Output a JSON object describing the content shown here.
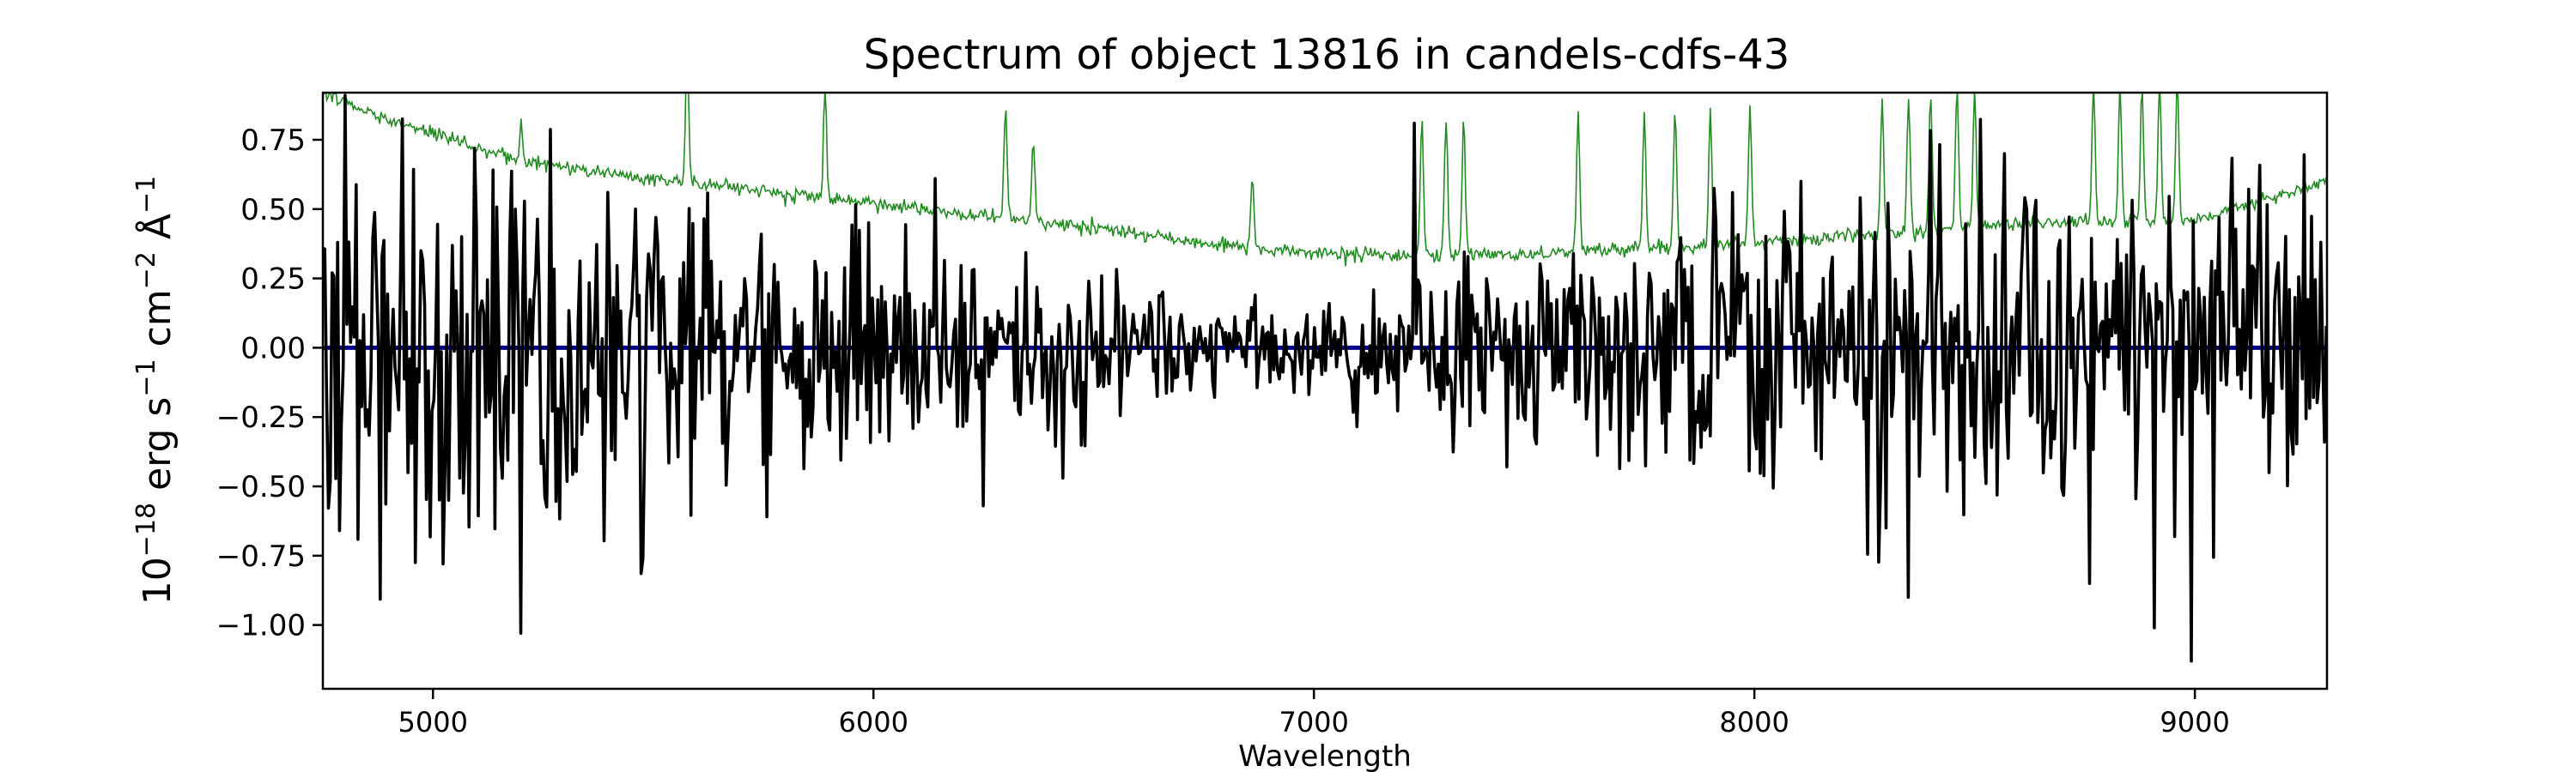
{
  "chart_data": {
    "type": "line",
    "title": "Spectrum of object 13816 in candels-cdfs-43",
    "xlabel": "Wavelength",
    "ylabel": {
      "base": "10",
      "exp": "−18",
      "unit1": " erg s",
      "exp2": "−1",
      "unit2": " cm",
      "exp3": "−2",
      "unit3": " Å",
      "exp4": "−1"
    },
    "xlim": [
      4750,
      9300
    ],
    "ylim": [
      -1.23,
      0.92
    ],
    "xticks": [
      5000,
      6000,
      7000,
      8000,
      9000
    ],
    "yticks": [
      0.75,
      0.5,
      0.25,
      0.0,
      -0.25,
      -0.5,
      -0.75,
      -1.0
    ],
    "ytick_labels": [
      "0.75",
      "0.50",
      "0.25",
      "0.00",
      "−0.25",
      "−0.50",
      "−0.75",
      "−1.00"
    ],
    "colors": {
      "flux": "#000000",
      "error": "#228b22",
      "zero": "#00008b"
    },
    "series": [
      {
        "role": "flux",
        "noise_amplitude_profile": [
          {
            "x": 4750,
            "a": 0.55
          },
          {
            "x": 5300,
            "a": 0.5
          },
          {
            "x": 6000,
            "a": 0.3
          },
          {
            "x": 6800,
            "a": 0.15
          },
          {
            "x": 7300,
            "a": 0.2
          },
          {
            "x": 8000,
            "a": 0.4
          },
          {
            "x": 8300,
            "a": 0.5
          },
          {
            "x": 9300,
            "a": 0.45
          }
        ],
        "notable_points": [
          {
            "x": 5095,
            "y": 0.72
          },
          {
            "x": 5200,
            "y": -1.03
          },
          {
            "x": 5025,
            "y": -0.78
          },
          {
            "x": 5760,
            "y": -0.61
          },
          {
            "x": 6140,
            "y": 0.61
          },
          {
            "x": 6250,
            "y": -0.57
          },
          {
            "x": 6430,
            "y": -0.47
          },
          {
            "x": 7230,
            "y": 0.81
          },
          {
            "x": 7950,
            "y": 0.56
          },
          {
            "x": 8300,
            "y": -0.65
          },
          {
            "x": 8350,
            "y": -0.9
          },
          {
            "x": 8620,
            "y": 0.5
          },
          {
            "x": 8760,
            "y": -0.85
          },
          {
            "x": 8910,
            "y": -1.01
          },
          {
            "x": 8990,
            "y": -1.13
          }
        ]
      },
      {
        "role": "error",
        "baseline": [
          {
            "x": 4750,
            "y": 0.92
          },
          {
            "x": 4900,
            "y": 0.82
          },
          {
            "x": 5200,
            "y": 0.67
          },
          {
            "x": 5600,
            "y": 0.59
          },
          {
            "x": 6000,
            "y": 0.52
          },
          {
            "x": 6400,
            "y": 0.45
          },
          {
            "x": 6900,
            "y": 0.35
          },
          {
            "x": 7200,
            "y": 0.33
          },
          {
            "x": 7500,
            "y": 0.34
          },
          {
            "x": 8000,
            "y": 0.38
          },
          {
            "x": 8200,
            "y": 0.4
          },
          {
            "x": 8600,
            "y": 0.45
          },
          {
            "x": 9000,
            "y": 0.46
          },
          {
            "x": 9300,
            "y": 0.6
          }
        ],
        "sky_lines": [
          {
            "x": 5200,
            "h": 0.15
          },
          {
            "x": 5577,
            "h": 0.5
          },
          {
            "x": 5890,
            "h": 0.4
          },
          {
            "x": 6300,
            "h": 0.4
          },
          {
            "x": 6363,
            "h": 0.3
          },
          {
            "x": 6860,
            "h": 0.25
          },
          {
            "x": 7245,
            "h": 0.5
          },
          {
            "x": 7300,
            "h": 0.5
          },
          {
            "x": 7340,
            "h": 0.5
          },
          {
            "x": 7600,
            "h": 0.5
          },
          {
            "x": 7750,
            "h": 0.5
          },
          {
            "x": 7820,
            "h": 0.5
          },
          {
            "x": 7900,
            "h": 0.5
          },
          {
            "x": 7990,
            "h": 0.5
          },
          {
            "x": 8290,
            "h": 0.5
          },
          {
            "x": 8350,
            "h": 0.5
          },
          {
            "x": 8400,
            "h": 0.5
          },
          {
            "x": 8460,
            "h": 0.5
          },
          {
            "x": 8500,
            "h": 0.5
          },
          {
            "x": 8770,
            "h": 0.5
          },
          {
            "x": 8830,
            "h": 0.5
          },
          {
            "x": 8880,
            "h": 0.5
          },
          {
            "x": 8920,
            "h": 0.5
          },
          {
            "x": 8960,
            "h": 0.5
          }
        ]
      },
      {
        "role": "zero",
        "y": 0.0
      }
    ]
  }
}
